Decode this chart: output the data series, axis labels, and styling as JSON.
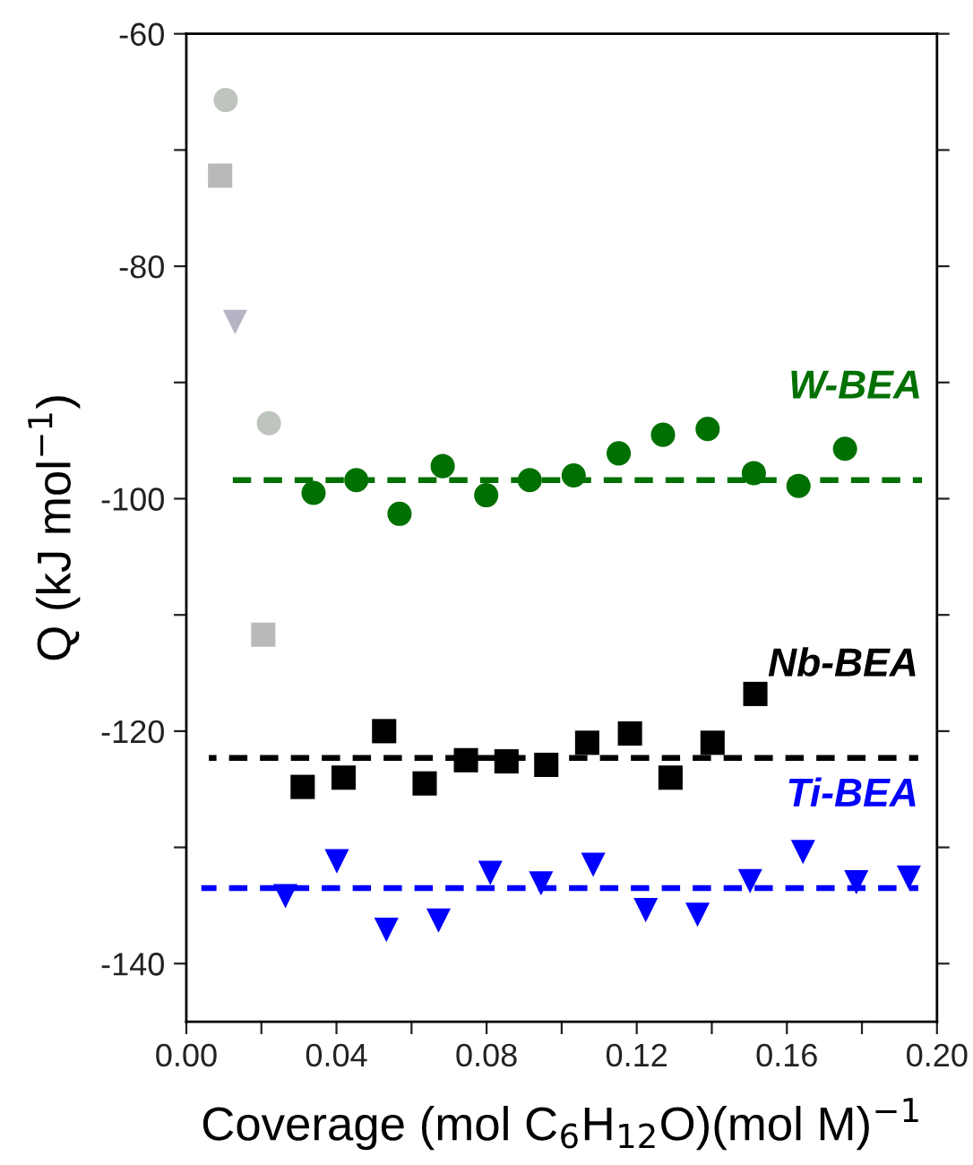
{
  "chart_data": {
    "type": "scatter",
    "xlabel": "Coverage (mol C$_{6}$H$_{12}$O)(mol M)$^{−1}$",
    "ylabel": "Q (kJ mol$^{−1}$)",
    "xlim": [
      0.0,
      0.2
    ],
    "ylim": [
      -145,
      -60
    ],
    "xticks": [
      {
        "value": 0.0,
        "label": "0.00"
      },
      {
        "value": 0.02,
        "label": null
      },
      {
        "value": 0.04,
        "label": "0.04"
      },
      {
        "value": 0.06,
        "label": null
      },
      {
        "value": 0.08,
        "label": "0.08"
      },
      {
        "value": 0.1,
        "label": null
      },
      {
        "value": 0.12,
        "label": "0.12"
      },
      {
        "value": 0.14,
        "label": null
      },
      {
        "value": 0.16,
        "label": "0.16"
      },
      {
        "value": 0.18,
        "label": null
      },
      {
        "value": 0.2,
        "label": "0.20"
      }
    ],
    "yticks": [
      -140,
      {
        "value": -130,
        "label": null
      },
      -120,
      {
        "value": -110,
        "label": null
      },
      -100,
      {
        "value": -90,
        "label": null
      },
      -80,
      {
        "value": -70,
        "label": null
      },
      -60
    ],
    "grid": false,
    "series": [
      {
        "marker": "circle",
        "color": "#bec4be",
        "x": [
          0.0105,
          0.022
        ],
        "values": [
          -65.7,
          -93.5
        ]
      },
      {
        "marker": "square",
        "color": "#b9b9b9",
        "x": [
          0.009,
          0.0205
        ],
        "values": [
          -72.2,
          -111.7
        ]
      },
      {
        "marker": "triangle",
        "color": "#b4b4c4",
        "x": [
          0.013
        ],
        "values": [
          -84.8
        ]
      },
      {
        "marker": "circle",
        "color": "#007000",
        "x": [
          0.0339,
          0.0453,
          0.0568,
          0.0683,
          0.0799,
          0.0915,
          0.1032,
          0.1152,
          0.127,
          0.1389,
          0.1512,
          0.1631,
          0.1755
        ],
        "values": [
          -99.5,
          -98.4,
          -101.3,
          -97.2,
          -99.7,
          -98.4,
          -98.0,
          -96.1,
          -94.5,
          -94.0,
          -97.8,
          -98.9,
          -95.7
        ]
      },
      {
        "marker": "square",
        "color": "#000000",
        "x": [
          0.031,
          0.0419,
          0.0527,
          0.0635,
          0.0745,
          0.0853,
          0.0959,
          0.1068,
          0.1182,
          0.129,
          0.1402,
          0.1516
        ],
        "values": [
          -124.8,
          -124.0,
          -120.0,
          -124.5,
          -122.5,
          -122.6,
          -122.9,
          -121.0,
          -120.2,
          -124.0,
          -121.0,
          -116.8
        ]
      },
      {
        "marker": "triangle",
        "color": "#0000ff",
        "x": [
          0.0264,
          0.0401,
          0.0533,
          0.0672,
          0.081,
          0.0945,
          0.1084,
          0.1224,
          0.1362,
          0.1502,
          0.1643,
          0.1785,
          0.1925
        ],
        "values": [
          -134.2,
          -131.2,
          -137.1,
          -136.3,
          -132.2,
          -133.1,
          -131.5,
          -135.4,
          -135.8,
          -132.9,
          -130.4,
          -133.0,
          -132.6
        ]
      },
      {
        "type": "line",
        "name": "W-BEA",
        "line_style": "dashed",
        "color": "#007000",
        "x": [
          0.011,
          0.196
        ],
        "values": [
          -98.4,
          -98.4
        ]
      },
      {
        "type": "line",
        "name": "Nb-BEA",
        "line_style": "dashed",
        "color": "#000000",
        "x": [
          0.006,
          0.195
        ],
        "values": [
          -122.3,
          -122.3
        ]
      },
      {
        "type": "line",
        "name": "Ti-BEA",
        "line_style": "dashed",
        "color": "#0000ff",
        "x": [
          0.004,
          0.195
        ],
        "values": [
          -133.5,
          -133.5
        ]
      }
    ]
  }
}
